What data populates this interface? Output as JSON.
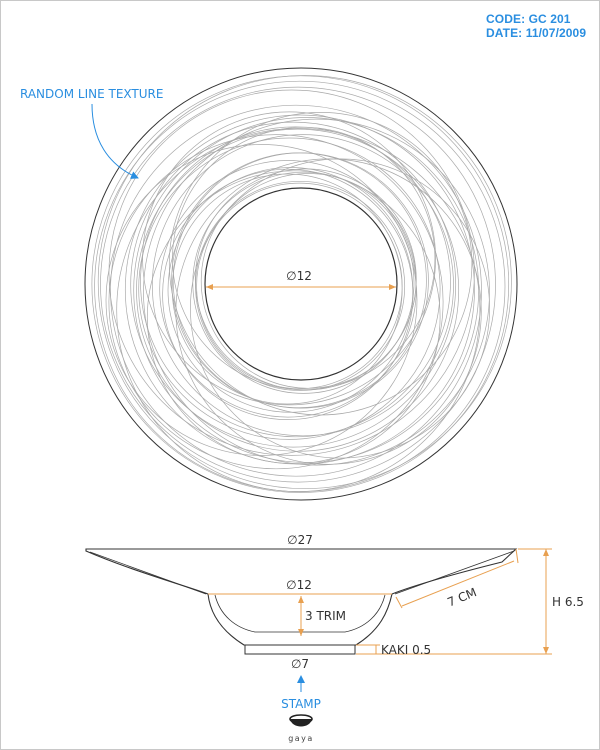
{
  "header": {
    "code": "CODE: GC 201",
    "date": "DATE: 11/07/2009"
  },
  "top_view": {
    "texture_label": "RANDOM LINE TEXTURE",
    "inner_diameter_label": "∅12"
  },
  "side_view": {
    "outer_diameter_label": "∅27",
    "well_diameter_label": "∅12",
    "depth_label": "3 TRIM",
    "slope_label": "7 CM",
    "height_label": "H 6.5",
    "base_thickness_label": "KAKI 0.5",
    "base_diameter_label": "∅7"
  },
  "stamp": {
    "label": "STAMP",
    "brand": "gaya"
  },
  "colors": {
    "dimension": "#e8a050",
    "callout": "#2a8ee0",
    "line": "#333333",
    "texture": "#a9a9a9"
  }
}
